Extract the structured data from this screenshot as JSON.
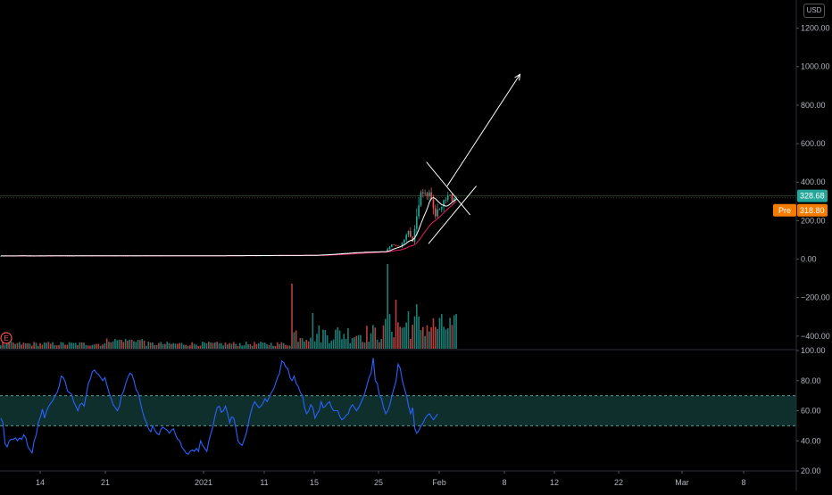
{
  "currency_label": "USD",
  "colors": {
    "up": "#26a69a",
    "down": "#ef5350",
    "ma_long": "#e91e63",
    "ma_short": "#ffffff",
    "rsi_line": "#2962ff",
    "rsi_band": "#0f2f2c",
    "rsi_level": "#5b9b97",
    "price_line": "#2a3b2a",
    "last_badge": "#26a69a",
    "pre_badge": "#f57c00",
    "axis_text": "#b2b5be",
    "drawing": "#ffffff"
  },
  "badges": {
    "last_price": "328.68",
    "pre_label": "Pre",
    "pre_price": "318.80"
  },
  "marker_icon": "earnings-icon",
  "marker_label": "E",
  "chart_data": [
    {
      "type": "candlestick",
      "ylim": [
        -470,
        1300
      ],
      "y_ticks": [
        "1200.00",
        "1000.00",
        "800.00",
        "600.00",
        "400.00",
        "200.00",
        "0.00",
        "−200.00",
        "−400.00"
      ],
      "y_tick_values": [
        1200,
        1000,
        800,
        600,
        400,
        200,
        0,
        -200,
        -400
      ],
      "x_ticks": [
        "14",
        "21",
        "2021",
        "11",
        "15",
        "25",
        "Feb",
        "8",
        "12",
        "22",
        "Mar",
        "8"
      ],
      "price_segments": [
        {
          "from": 0,
          "to": 100,
          "start": 17,
          "end": 18
        },
        {
          "from": 100,
          "to": 150,
          "start": 18,
          "end": 20
        },
        {
          "from": 150,
          "to": 170,
          "start": 20,
          "end": 35
        },
        {
          "from": 170,
          "to": 185,
          "start": 35,
          "end": 40
        },
        {
          "from": 185,
          "to": 188,
          "start": 40,
          "end": 76
        },
        {
          "from": 188,
          "to": 192,
          "start": 76,
          "end": 65
        },
        {
          "from": 192,
          "to": 196,
          "start": 65,
          "end": 147
        },
        {
          "from": 196,
          "to": 198,
          "start": 147,
          "end": 90
        },
        {
          "from": 198,
          "to": 202,
          "start": 90,
          "end": 350
        },
        {
          "from": 202,
          "to": 206,
          "start": 350,
          "end": 330
        },
        {
          "from": 206,
          "to": 209,
          "start": 330,
          "end": 225
        },
        {
          "from": 209,
          "to": 213,
          "start": 225,
          "end": 310
        },
        {
          "from": 213,
          "to": 220,
          "start": 310,
          "end": 325
        }
      ],
      "last_price": 328.68,
      "pre_price": 318.8,
      "drawings": {
        "triangle_upper": [
          [
            205,
            505
          ],
          [
            226,
            230
          ]
        ],
        "triangle_lower": [
          [
            206,
            80
          ],
          [
            229,
            380
          ]
        ],
        "projection_arrow": [
          [
            215,
            380
          ],
          [
            250,
            960
          ]
        ]
      }
    },
    {
      "type": "bar",
      "name": "volume",
      "relative_scale": true,
      "bars": "generated from price_segments; spikes at 140, 186, 200"
    },
    {
      "type": "line",
      "name": "rsi",
      "ylim": [
        20,
        100
      ],
      "y_ticks": [
        "100.00",
        "80.00",
        "60.00",
        "40.00",
        "20.00"
      ],
      "y_tick_values": [
        100,
        80,
        60,
        40,
        20
      ],
      "levels": [
        70,
        50
      ],
      "values": [
        55,
        52,
        38,
        36,
        40,
        41,
        41,
        42,
        40,
        42,
        41,
        44,
        42,
        36,
        34,
        32,
        40,
        44,
        52,
        56,
        61,
        55,
        60,
        63,
        65,
        67,
        70,
        72,
        76,
        83,
        82,
        79,
        73,
        72,
        71,
        66,
        63,
        60,
        64,
        65,
        63,
        70,
        78,
        81,
        86,
        87,
        85,
        84,
        82,
        80,
        82,
        77,
        72,
        68,
        64,
        62,
        60,
        63,
        70,
        73,
        78,
        82,
        85,
        84,
        80,
        74,
        72,
        66,
        60,
        55,
        52,
        48,
        46,
        50,
        47,
        45,
        44,
        48,
        49,
        48,
        47,
        45,
        47,
        48,
        44,
        41,
        40,
        36,
        34,
        32,
        31,
        33,
        34,
        33,
        35,
        33,
        40,
        37,
        35,
        33,
        40,
        45,
        50,
        57,
        62,
        63,
        59,
        60,
        63,
        58,
        52,
        56,
        55,
        48,
        40,
        38,
        37,
        41,
        45,
        52,
        58,
        63,
        66,
        64,
        62,
        63,
        65,
        68,
        66,
        69,
        72,
        74,
        78,
        82,
        85,
        93,
        92,
        89,
        88,
        82,
        80,
        83,
        78,
        76,
        72,
        70,
        62,
        58,
        60,
        64,
        62,
        55,
        58,
        60,
        66,
        62,
        63,
        65,
        66,
        62,
        60,
        60,
        60,
        56,
        54,
        55,
        57,
        58,
        62,
        64,
        62,
        60,
        62,
        65,
        68,
        72,
        77,
        82,
        85,
        95,
        80,
        78,
        70,
        68,
        62,
        58,
        60,
        64,
        70,
        75,
        80,
        91,
        88,
        80,
        75,
        70,
        63,
        58,
        62,
        48,
        45,
        47,
        50,
        52,
        55,
        57,
        58,
        56,
        54,
        56,
        58
      ]
    }
  ]
}
